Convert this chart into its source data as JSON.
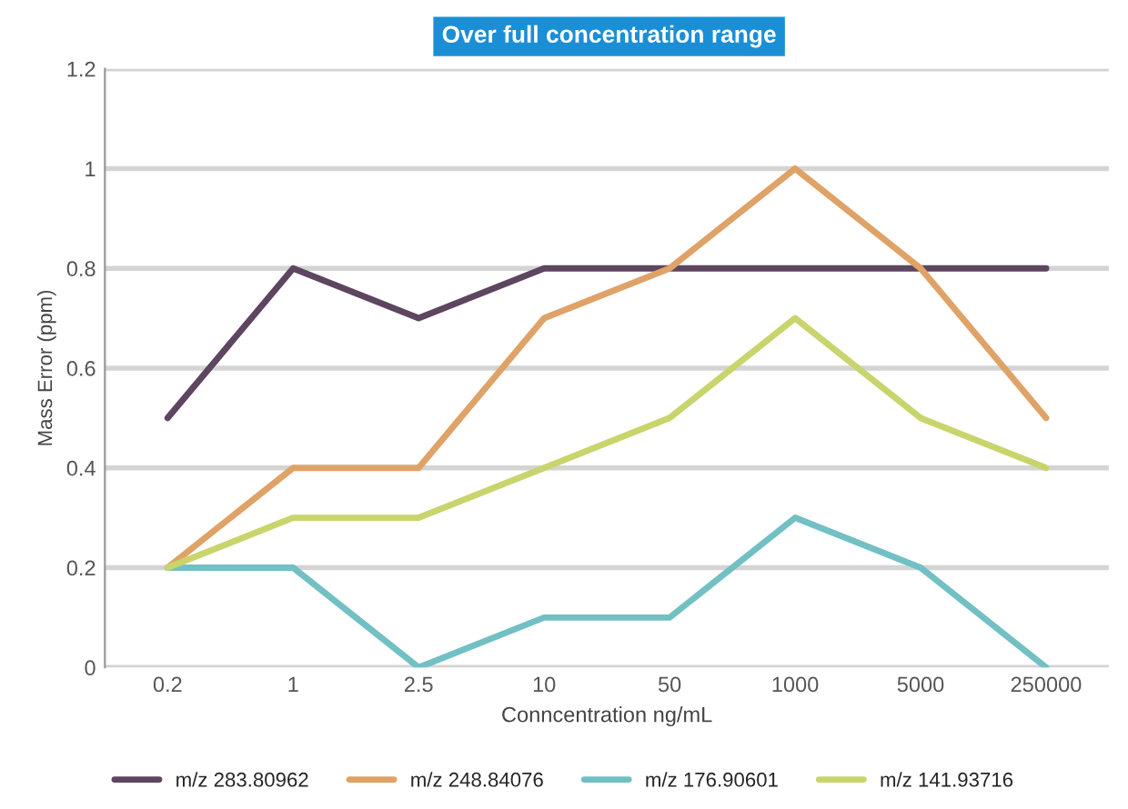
{
  "chart_data": {
    "type": "line",
    "title": "Over full concentration range",
    "xlabel": "Conncentration ng/mL",
    "ylabel": "Mass Error (ppm)",
    "categories": [
      "0.2",
      "1",
      "2.5",
      "10",
      "50",
      "1000",
      "5000",
      "250000"
    ],
    "series": [
      {
        "name": "m/z 283.80962",
        "color": "#5e4560",
        "values": [
          0.5,
          0.8,
          0.7,
          0.8,
          0.8,
          0.8,
          0.8,
          0.8
        ]
      },
      {
        "name": "m/z 248.84076",
        "color": "#dfa267",
        "values": [
          0.2,
          0.4,
          0.4,
          0.7,
          0.8,
          1.0,
          0.8,
          0.5
        ]
      },
      {
        "name": "m/z 176.90601",
        "color": "#72c0c4",
        "values": [
          0.2,
          0.2,
          0,
          0.1,
          0.1,
          0.3,
          0.2,
          0
        ]
      },
      {
        "name": "m/z 141.93716",
        "color": "#c9d46c",
        "values": [
          0.2,
          0.3,
          0.3,
          0.4,
          0.5,
          0.7,
          0.5,
          0.4
        ]
      }
    ],
    "ylim": [
      0,
      1.2
    ],
    "yticks": [
      0,
      0.2,
      0.4,
      0.6,
      0.8,
      1,
      1.2
    ],
    "grid": "y",
    "legend": "bottom",
    "marker": "none",
    "line_style": "solid"
  }
}
